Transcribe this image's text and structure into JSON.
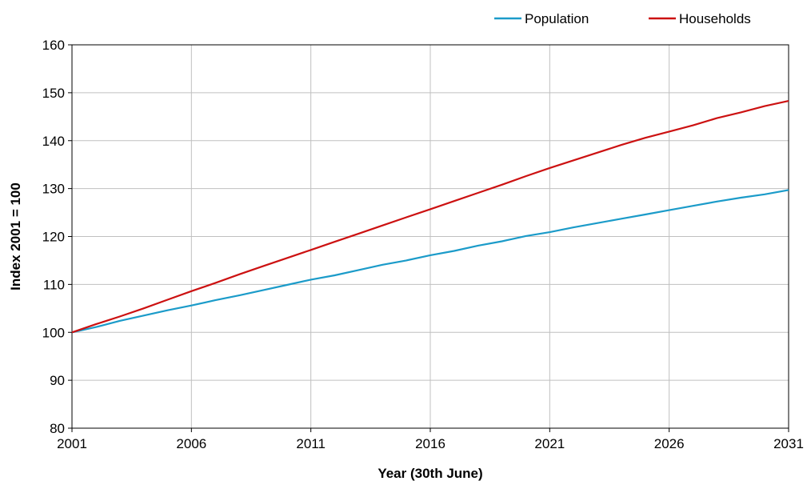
{
  "chart_data": {
    "type": "line",
    "title": "",
    "xlabel": "Year (30th June)",
    "ylabel": "Index 2001 = 100",
    "xlim": [
      2001,
      2031
    ],
    "ylim": [
      80,
      160
    ],
    "x_ticks": [
      2001,
      2006,
      2011,
      2016,
      2021,
      2026,
      2031
    ],
    "y_ticks": [
      80,
      90,
      100,
      110,
      120,
      130,
      140,
      150,
      160
    ],
    "grid": true,
    "legend_position": "top-right",
    "x": [
      2001,
      2002,
      2003,
      2004,
      2005,
      2006,
      2007,
      2008,
      2009,
      2010,
      2011,
      2012,
      2013,
      2014,
      2015,
      2016,
      2017,
      2018,
      2019,
      2020,
      2021,
      2022,
      2023,
      2024,
      2025,
      2026,
      2027,
      2028,
      2029,
      2030,
      2031
    ],
    "series": [
      {
        "name": "Population",
        "color": "#1b9bc9",
        "values": [
          100.0,
          101.1,
          102.4,
          103.5,
          104.6,
          105.6,
          106.7,
          107.7,
          108.8,
          109.9,
          111.0,
          111.9,
          113.0,
          114.1,
          115.0,
          116.1,
          117.0,
          118.1,
          119.0,
          120.1,
          120.9,
          121.9,
          122.8,
          123.7,
          124.6,
          125.5,
          126.4,
          127.3,
          128.1,
          128.8,
          129.7
        ]
      },
      {
        "name": "Households",
        "color": "#cc1111",
        "values": [
          100.0,
          101.7,
          103.3,
          105.0,
          106.8,
          108.6,
          110.3,
          112.1,
          113.8,
          115.5,
          117.2,
          118.9,
          120.6,
          122.3,
          124.0,
          125.7,
          127.4,
          129.1,
          130.8,
          132.6,
          134.3,
          135.9,
          137.5,
          139.1,
          140.6,
          141.9,
          143.2,
          144.7,
          145.9,
          147.2,
          148.3
        ]
      }
    ]
  }
}
